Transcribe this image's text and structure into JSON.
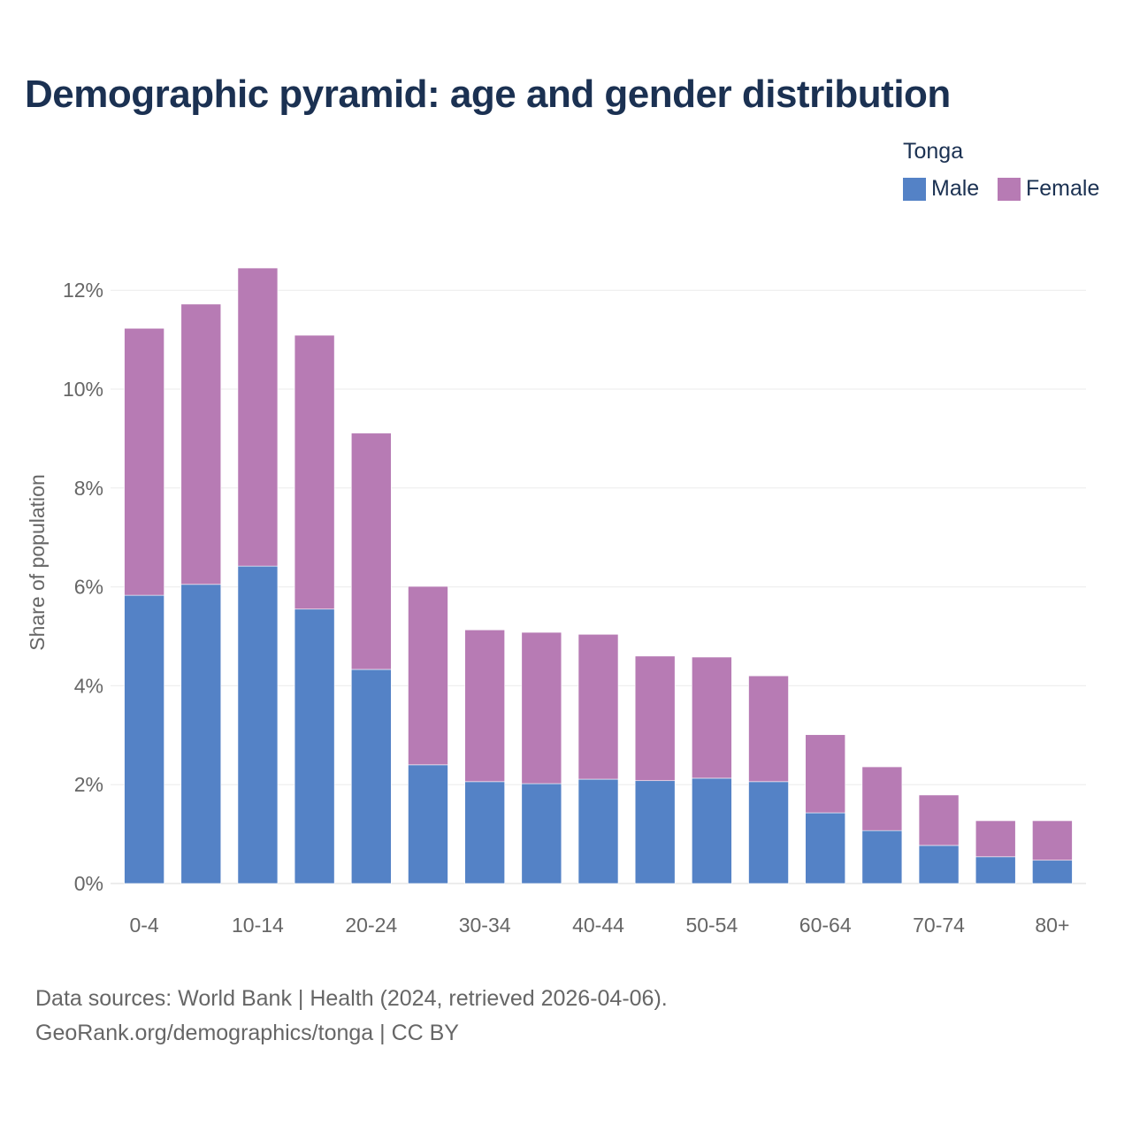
{
  "title": "Demographic pyramid: age and gender distribution",
  "footer": {
    "line1": "Data sources: World Bank | Health (2024, retrieved 2026-04-06).",
    "line2": "GeoRank.org/demographics/tonga | CC BY"
  },
  "chart_data": {
    "type": "bar",
    "stacked": true,
    "title": "Demographic pyramid: age and gender distribution",
    "ylabel": "Share of population",
    "xlabel": "",
    "ylim": [
      0,
      12.6
    ],
    "yticks": [
      0,
      2,
      4,
      6,
      8,
      10,
      12
    ],
    "ytick_labels": [
      "0%",
      "2%",
      "4%",
      "6%",
      "8%",
      "10%",
      "12%"
    ],
    "categories": [
      "0-4",
      "5-9",
      "10-14",
      "15-19",
      "20-24",
      "25-29",
      "30-34",
      "35-39",
      "40-44",
      "45-49",
      "50-54",
      "55-59",
      "60-64",
      "65-69",
      "70-74",
      "75-79",
      "80+"
    ],
    "xtick_labels": [
      "0-4",
      "10-14",
      "20-24",
      "30-34",
      "40-44",
      "50-54",
      "60-64",
      "70-74",
      "80+"
    ],
    "legend_title": "Tonga",
    "legend_position": "top-right",
    "grid": true,
    "series": [
      {
        "name": "Male",
        "color": "#5482c6",
        "values": [
          5.83,
          6.05,
          6.42,
          5.55,
          4.33,
          2.4,
          2.06,
          2.02,
          2.11,
          2.08,
          2.13,
          2.06,
          1.43,
          1.07,
          0.77,
          0.54,
          0.47
        ]
      },
      {
        "name": "Female",
        "color": "#b77bb4",
        "values": [
          5.4,
          5.67,
          6.03,
          5.54,
          4.78,
          3.61,
          3.07,
          3.06,
          2.93,
          2.52,
          2.45,
          2.14,
          1.58,
          1.29,
          1.02,
          0.73,
          0.8
        ]
      }
    ]
  }
}
